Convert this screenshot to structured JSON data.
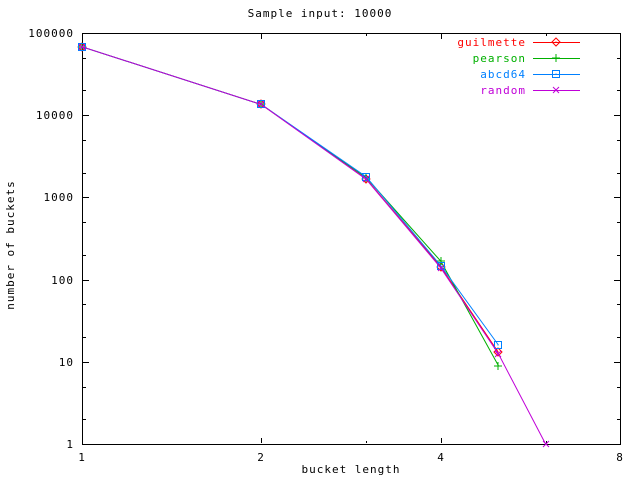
{
  "chart_data": {
    "type": "line",
    "title": "Sample input: 10000",
    "xlabel": "bucket length",
    "ylabel": "number of buckets",
    "x_scale": "log2",
    "y_scale": "log10",
    "xlim": [
      1,
      8
    ],
    "ylim": [
      1,
      100000
    ],
    "x_ticks": [
      1,
      2,
      4,
      8
    ],
    "x_minor_ticks": [
      3,
      6
    ],
    "y_ticks": [
      1,
      10,
      100,
      1000,
      10000,
      100000
    ],
    "y_minor_mults": [
      2,
      5
    ],
    "grid": false,
    "legend_position": "top-right-inside",
    "axis_color": "#000000",
    "background_color": "#ffffff",
    "series": [
      {
        "name": "guilmette",
        "color": "#ff0000",
        "marker": "diamond",
        "points": [
          [
            1,
            68000
          ],
          [
            2,
            13500
          ],
          [
            3,
            1680
          ],
          [
            4,
            143
          ],
          [
            5,
            13
          ]
        ]
      },
      {
        "name": "pearson",
        "color": "#00b000",
        "marker": "plus",
        "points": [
          [
            1,
            68000
          ],
          [
            2,
            13500
          ],
          [
            3,
            1740
          ],
          [
            4,
            168
          ],
          [
            5,
            9
          ]
        ]
      },
      {
        "name": "abcd64",
        "color": "#0080ff",
        "marker": "square",
        "points": [
          [
            1,
            68000
          ],
          [
            2,
            13500
          ],
          [
            3,
            1780
          ],
          [
            4,
            148
          ],
          [
            5,
            16
          ]
        ]
      },
      {
        "name": "random",
        "color": "#c000d8",
        "marker": "cross",
        "points": [
          [
            1,
            68000
          ],
          [
            2,
            13500
          ],
          [
            3,
            1660
          ],
          [
            4,
            139
          ],
          [
            5,
            12.5
          ],
          [
            6,
            1
          ]
        ]
      }
    ]
  }
}
